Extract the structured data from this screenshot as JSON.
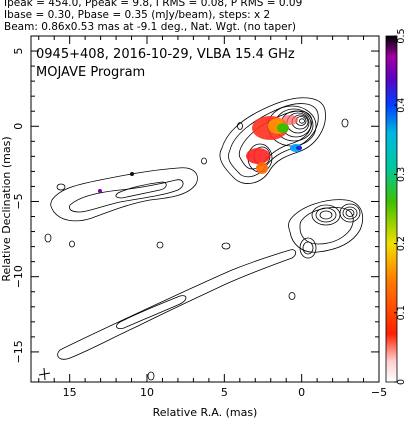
{
  "header": {
    "line1": "Ipeak = 454.0, Ppeak = 9.8, I RMS = 0.08, P RMS = 0.09",
    "line2": "Ibase = 0.30, Pbase = 0.35 (mJy/beam), steps: x 2",
    "line3": "Beam: 0.86x0.53 mas at -9.1 deg., Nat. Wgt. (no taper)"
  },
  "chart_data": {
    "type": "contour",
    "title": "0945+408, 2016-10-29, VLBA 15.4 GHz",
    "subtitle": "MOJAVE Program",
    "xlabel": "Relative R.A. (mas)",
    "ylabel": "Relative Declination (mas)",
    "xlim": [
      17.5,
      -5
    ],
    "ylim": [
      -17,
      6
    ],
    "x_ticks": [
      15,
      10,
      5,
      0,
      -5
    ],
    "y_ticks": [
      5,
      0,
      -5,
      -10,
      -15
    ],
    "colorbar": {
      "label": "",
      "range": [
        0,
        0.5
      ],
      "ticks": [
        0,
        0.1,
        0.2,
        0.3,
        0.4,
        0.5
      ]
    },
    "contour_levels_mJy_per_beam": [
      0.3,
      0.6,
      1.2,
      2.4,
      4.8,
      9.6,
      19.2,
      38.4,
      76.8,
      153.6,
      307.2
    ],
    "core_position": [
      0,
      0
    ],
    "beam": {
      "major_mas": 0.86,
      "minor_mas": 0.53,
      "pa_deg": -9.1
    },
    "colors": {
      "contour": "#000000",
      "background": "#ffffff"
    }
  }
}
